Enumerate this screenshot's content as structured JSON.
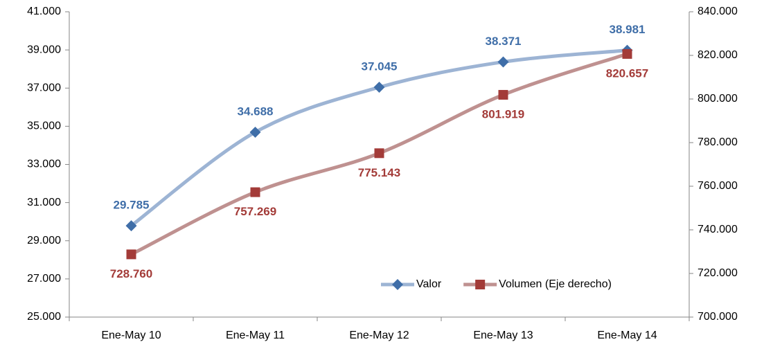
{
  "chart_data": {
    "type": "line",
    "categories": [
      "Ene-May 10",
      "Ene-May 11",
      "Ene-May 12",
      "Ene-May 13",
      "Ene-May 14"
    ],
    "series": [
      {
        "name": "Valor",
        "color": "#3f6ea8",
        "line_color": "#9db4d4",
        "marker": "diamond",
        "values": [
          29785,
          34688,
          37045,
          38371,
          38981
        ],
        "value_labels": [
          "29.785",
          "34.688",
          "37.045",
          "38.371",
          "38.981"
        ]
      },
      {
        "name": "Volumen (Eje derecho)",
        "color": "#a33b38",
        "line_color": "#bf9190",
        "marker": "square",
        "axis": "y2",
        "values": [
          728760,
          757269,
          775143,
          801919,
          820657
        ],
        "value_labels": [
          "728.760",
          "757.269",
          "775.143",
          "801.919",
          "820.657"
        ]
      }
    ],
    "ylim": [
      25000,
      41000
    ],
    "yticks": [
      {
        "value": 25000,
        "label": "25.000"
      },
      {
        "value": 27000,
        "label": "27.000"
      },
      {
        "value": 29000,
        "label": "29.000"
      },
      {
        "value": 31000,
        "label": "31.000"
      },
      {
        "value": 33000,
        "label": "33.000"
      },
      {
        "value": 35000,
        "label": "35.000"
      },
      {
        "value": 37000,
        "label": "37.000"
      },
      {
        "value": 39000,
        "label": "39.000"
      },
      {
        "value": 41000,
        "label": "41.000"
      }
    ],
    "y2lim": [
      700000,
      840000
    ],
    "y2ticks": [
      {
        "value": 700000,
        "label": "700.000"
      },
      {
        "value": 720000,
        "label": "720.000"
      },
      {
        "value": 740000,
        "label": "740.000"
      },
      {
        "value": 760000,
        "label": "760.000"
      },
      {
        "value": 780000,
        "label": "780.000"
      },
      {
        "value": 800000,
        "label": "800.000"
      },
      {
        "value": 820000,
        "label": "820.000"
      },
      {
        "value": 840000,
        "label": "840.000"
      }
    ],
    "smooth": true,
    "grid": false,
    "legend": "lower right"
  }
}
